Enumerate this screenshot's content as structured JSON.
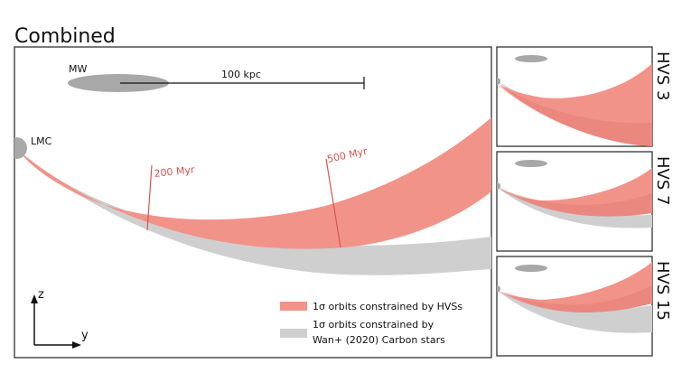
{
  "main_panel": {
    "title": "Combined",
    "mw_label": "MW",
    "scale_label": "100 kpc",
    "lmc_label": "LMC",
    "time_marks": [
      "200 Myr",
      "500 Myr"
    ],
    "axes": {
      "z_label": "z",
      "y_label": "y"
    },
    "legend": [
      {
        "label": "1σ orbits constrained by HVSs",
        "color": "#f2938a"
      },
      {
        "label_line1": "1σ orbits constrained by",
        "label_line2": "Wan+ (2020) Carbon stars",
        "color": "#cfcfcf"
      }
    ]
  },
  "side_panels": [
    {
      "label": "HVS 3"
    },
    {
      "label": "HVS 7"
    },
    {
      "label": "HVS 15"
    }
  ],
  "colors": {
    "hvs_band": "#f2938a",
    "hvs_band_dark": "#e47f78",
    "carbon_band": "#cfcfcf",
    "mw_disk": "#a8a8a8",
    "lmc": "#a8a8a8",
    "time_mark": "#d9544e",
    "frame": "#333333"
  }
}
